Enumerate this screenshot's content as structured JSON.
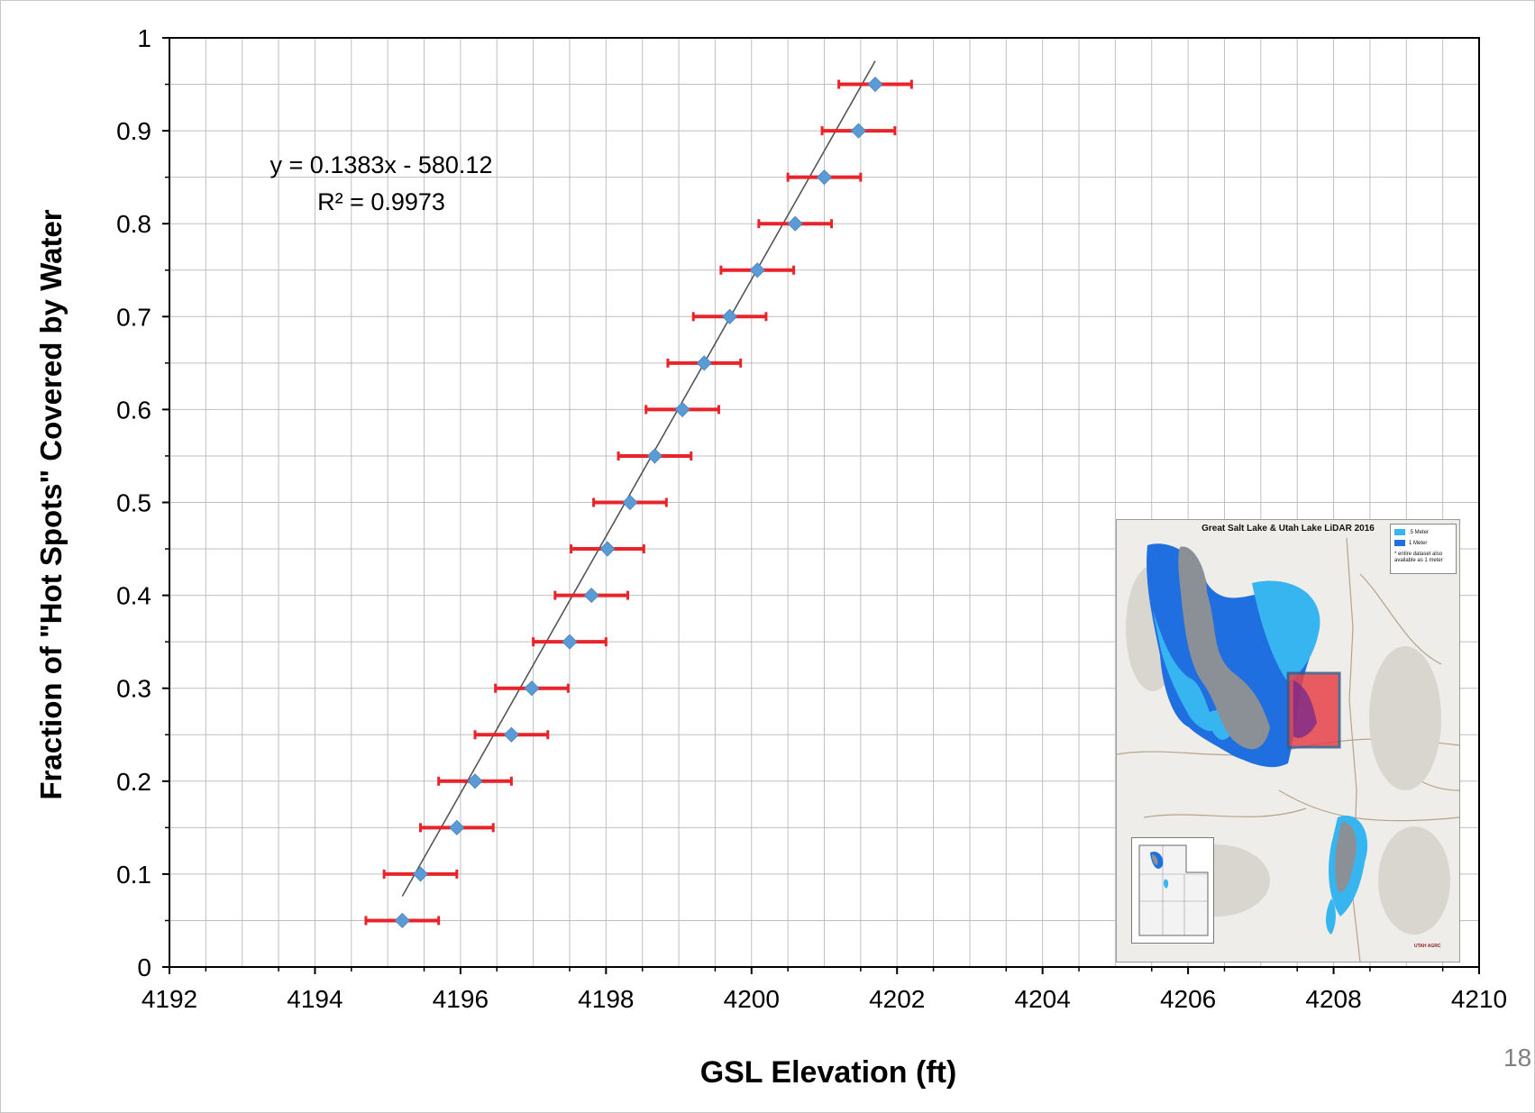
{
  "chart_data": {
    "type": "scatter",
    "xlabel": "GSL Elevation (ft)",
    "ylabel": "Fraction of \"Hot Spots\" Covered by Water",
    "xlim": [
      4192,
      4210
    ],
    "ylim": [
      0,
      1
    ],
    "x_ticks": [
      "4192",
      "4194",
      "4196",
      "4198",
      "4200",
      "4202",
      "4204",
      "4206",
      "4208",
      "4210"
    ],
    "y_ticks": [
      "0",
      "0.1",
      "0.2",
      "0.3",
      "0.4",
      "0.5",
      "0.6",
      "0.7",
      "0.8",
      "0.9",
      "1"
    ],
    "x_grid_step": 0.5,
    "y_grid_step": 0.05,
    "grid": true,
    "series": [
      {
        "marker": "diamond",
        "color": "#5b9bd5",
        "x": [
          4195.2,
          4195.45,
          4195.95,
          4196.2,
          4196.7,
          4196.98,
          4197.5,
          4197.8,
          4198.02,
          4198.33,
          4198.67,
          4199.05,
          4199.35,
          4199.7,
          4200.08,
          4200.6,
          4201.0,
          4201.47,
          4201.7
        ],
        "y": [
          0.05,
          0.1,
          0.15,
          0.2,
          0.25,
          0.3,
          0.35,
          0.4,
          0.45,
          0.5,
          0.55,
          0.6,
          0.65,
          0.7,
          0.75,
          0.8,
          0.85,
          0.9,
          0.95
        ],
        "x_error": 0.5,
        "error_bar_color": "#e8242a"
      }
    ],
    "trendline": {
      "type": "linear",
      "x_range": [
        4195.2,
        4201.7
      ],
      "color": "#555555",
      "equation": "y = 0.1383x - 580.12",
      "r_squared": "R² = 0.9973"
    }
  },
  "inset_map": {
    "title": "Great Salt Lake & Utah Lake LiDAR 2016",
    "legend": [
      {
        "label": ".5 Meter",
        "color": "#36b5f0"
      },
      {
        "label": "1 Meter",
        "color": "#1f6fe0"
      }
    ],
    "legend_note": "* entire dataset also available as 1 meter",
    "logo_text": "UTAH AGRC",
    "lake_color": "#8a9096",
    "highlight_color": "#e8424a"
  },
  "page_number": "18"
}
